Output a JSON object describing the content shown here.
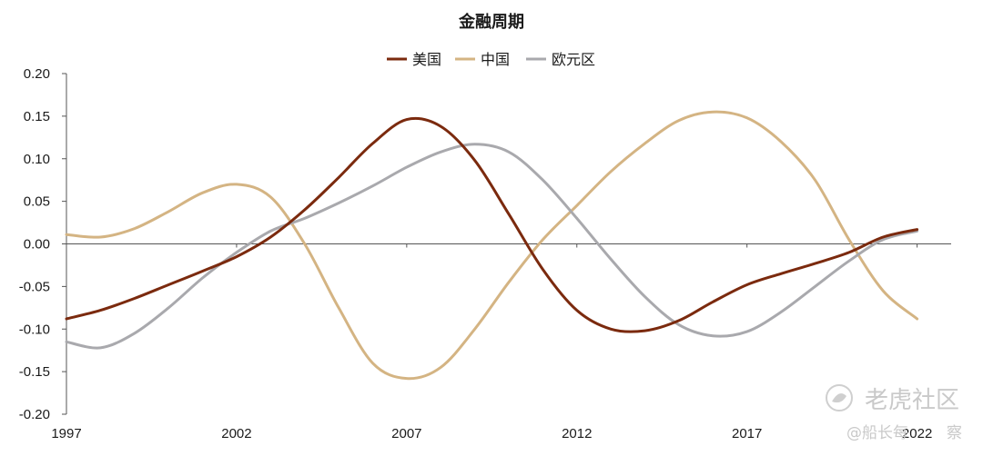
{
  "chart_data": {
    "type": "line",
    "title": "金融周期",
    "xlabel": "",
    "ylabel": "",
    "xlim": [
      1997,
      2023
    ],
    "ylim": [
      -0.2,
      0.2
    ],
    "yticks": [
      "0.20",
      "0.15",
      "0.10",
      "0.05",
      "0.00",
      "-0.05",
      "-0.10",
      "-0.15",
      "-0.20"
    ],
    "xticks": [
      "1997",
      "2002",
      "2007",
      "2012",
      "2017",
      "2022"
    ],
    "legend_position": "top-center",
    "grid": false,
    "series": [
      {
        "name": "美国",
        "color": "#7b2a0e",
        "x": [
          1997,
          1998,
          1999,
          2000,
          2001,
          2002,
          2003,
          2004,
          2005,
          2006,
          2007,
          2008,
          2009,
          2010,
          2011,
          2012,
          2013,
          2014,
          2015,
          2016,
          2017,
          2018,
          2019,
          2020,
          2021,
          2022
        ],
        "values": [
          -0.088,
          -0.078,
          -0.064,
          -0.048,
          -0.032,
          -0.015,
          0.008,
          0.04,
          0.078,
          0.118,
          0.146,
          0.138,
          0.098,
          0.035,
          -0.03,
          -0.078,
          -0.1,
          -0.102,
          -0.09,
          -0.068,
          -0.048,
          -0.035,
          -0.023,
          -0.01,
          0.008,
          0.017
        ]
      },
      {
        "name": "中国",
        "color": "#d4b483",
        "x": [
          1997,
          1998,
          1999,
          2000,
          2001,
          2002,
          2003,
          2004,
          2005,
          2006,
          2007,
          2008,
          2009,
          2010,
          2011,
          2012,
          2013,
          2014,
          2015,
          2016,
          2017,
          2018,
          2019,
          2020,
          2021,
          2022
        ],
        "values": [
          0.011,
          0.008,
          0.018,
          0.038,
          0.06,
          0.07,
          0.055,
          0.0,
          -0.075,
          -0.14,
          -0.158,
          -0.145,
          -0.1,
          -0.045,
          0.005,
          0.045,
          0.085,
          0.118,
          0.145,
          0.155,
          0.148,
          0.12,
          0.075,
          0.005,
          -0.055,
          -0.088
        ]
      },
      {
        "name": "欧元区",
        "color": "#a9a9ad",
        "x": [
          1997,
          1998,
          1999,
          2000,
          2001,
          2002,
          2003,
          2004,
          2005,
          2006,
          2007,
          2008,
          2009,
          2010,
          2011,
          2012,
          2013,
          2014,
          2015,
          2016,
          2017,
          2018,
          2019,
          2020,
          2021,
          2022
        ],
        "values": [
          -0.115,
          -0.122,
          -0.105,
          -0.075,
          -0.04,
          -0.01,
          0.015,
          0.03,
          0.048,
          0.068,
          0.09,
          0.108,
          0.117,
          0.108,
          0.075,
          0.03,
          -0.018,
          -0.062,
          -0.095,
          -0.108,
          -0.103,
          -0.08,
          -0.05,
          -0.02,
          0.005,
          0.015
        ]
      }
    ]
  },
  "watermark": {
    "brand": "老虎社区",
    "account": "@船长每",
    "overlap_text": "2022",
    "overlap_tail": "察"
  }
}
